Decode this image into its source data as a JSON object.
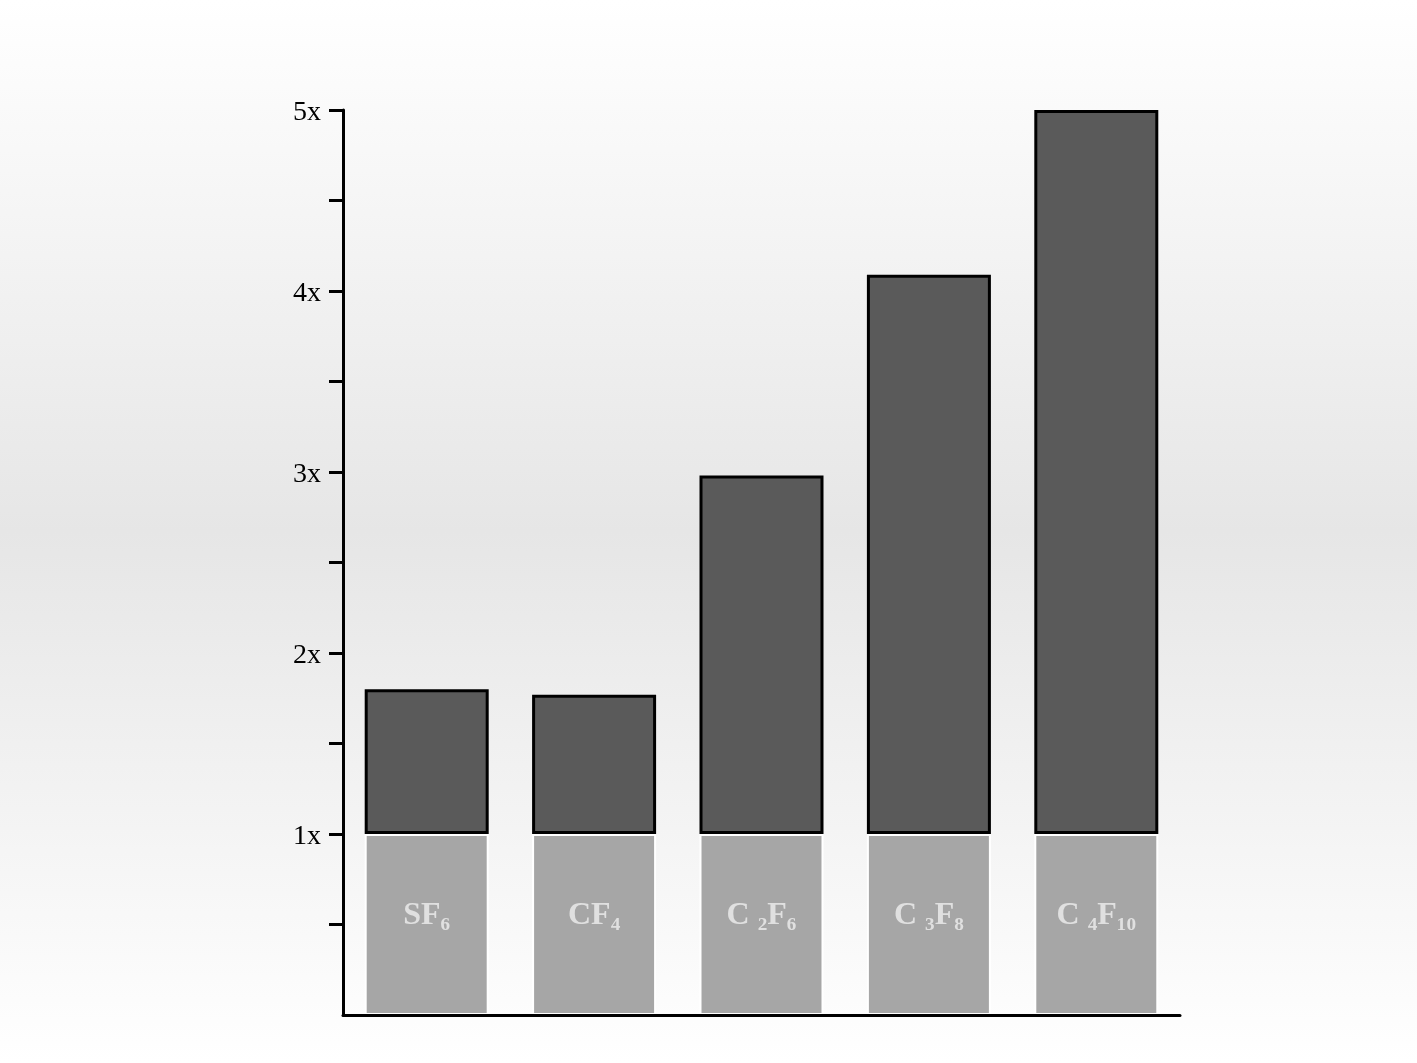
{
  "chart_data": {
    "type": "bar",
    "stacked": true,
    "categories": [
      "SF₆",
      "CF₄",
      "C ₂F₆",
      "C ₃F₈",
      "C ₄F₁₀"
    ],
    "series": [
      {
        "color": "#a6a6a6",
        "values": [
          1,
          1,
          1,
          1,
          1
        ]
      },
      {
        "color": "#5a5a5a",
        "values": [
          0.8,
          0.77,
          1.98,
          3.09,
          4.0
        ]
      }
    ],
    "ylim": [
      0,
      5
    ],
    "yticks": [
      {
        "value": 0.5,
        "label": null
      },
      {
        "value": 1,
        "label": "1x"
      },
      {
        "value": 1.5,
        "label": null
      },
      {
        "value": 2,
        "label": "2x"
      },
      {
        "value": 2.5,
        "label": null
      },
      {
        "value": 3,
        "label": "3x"
      },
      {
        "value": 3.5,
        "label": null
      },
      {
        "value": 4,
        "label": "4x"
      },
      {
        "value": 4.5,
        "label": null
      },
      {
        "value": 5,
        "label": "5x"
      }
    ],
    "grid": false
  }
}
